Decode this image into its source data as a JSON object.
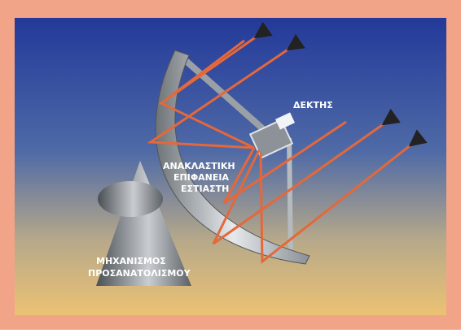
{
  "labels": {
    "receiver": "ΔΕΚΤΗΣ",
    "surface": [
      "ΑΝΑΚΛΑΣΤΙΚΗ",
      "ΕΠΙΦΑΝΕΙΑ",
      "ΕΣΤΙΑΣΤΗ"
    ],
    "mechanism": [
      "ΜΗΧΑΝΙΣΜΟΣ",
      "ΠΡΟΣΑΝΑΤΟΛΙΣΜΟΥ"
    ]
  }
}
